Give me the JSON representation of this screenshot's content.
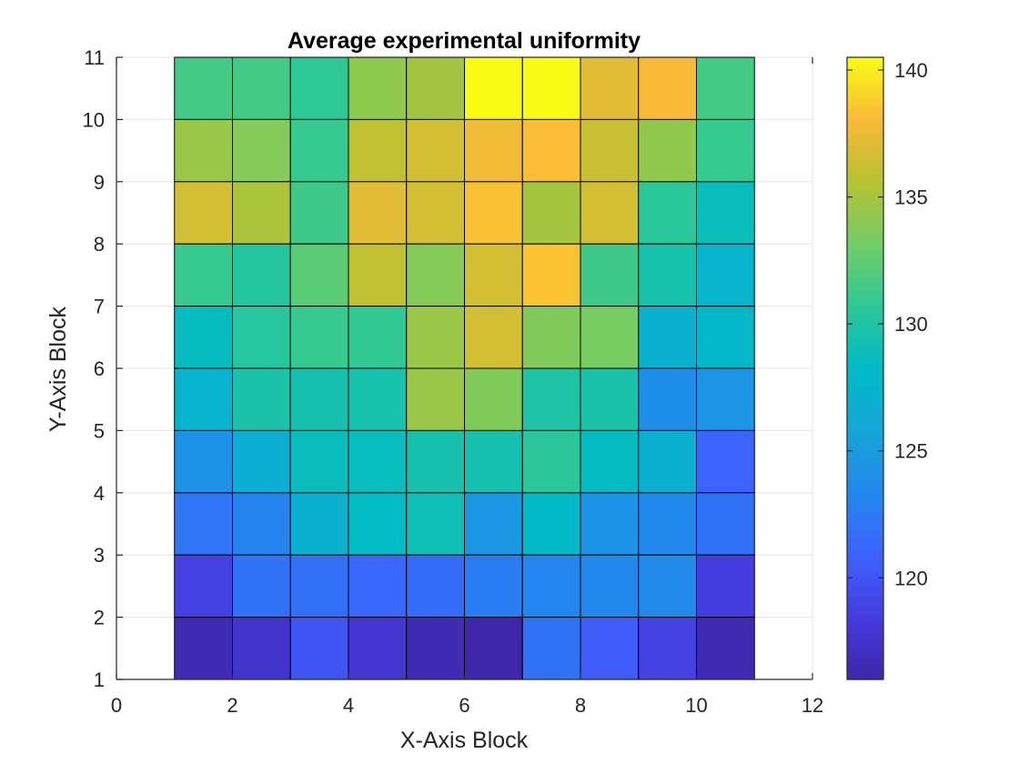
{
  "chart_data": {
    "type": "heatmap",
    "title": "Average experimental uniformity",
    "xlabel": "X-Axis Block",
    "ylabel": "Y-Axis Block",
    "xlim": [
      0,
      12
    ],
    "ylim": [
      1,
      11
    ],
    "xticks": [
      "0",
      "2",
      "4",
      "6",
      "8",
      "10",
      "12"
    ],
    "yticks": [
      "1",
      "2",
      "3",
      "4",
      "5",
      "6",
      "7",
      "8",
      "9",
      "10",
      "11"
    ],
    "grid": true,
    "colormap": "parula",
    "clim": [
      116,
      140.5
    ],
    "colorbar_ticks": [
      "120",
      "125",
      "130",
      "135",
      "140"
    ],
    "x_edges": [
      1,
      2,
      3,
      4,
      5,
      6,
      7,
      8,
      9,
      10,
      11
    ],
    "y_edges": [
      1,
      2,
      3,
      4,
      5,
      6,
      7,
      8,
      9,
      10,
      11
    ],
    "rows_y_top_to_bottom": [
      [
        131.5,
        131.5,
        130.7,
        134.2,
        134.9,
        140.5,
        140.5,
        137.2,
        138.0,
        131.5
      ],
      [
        134.6,
        133.8,
        131.0,
        135.9,
        136.6,
        137.7,
        138.2,
        136.2,
        134.3,
        131.0
      ],
      [
        136.6,
        135.2,
        131.3,
        137.2,
        136.6,
        138.3,
        135.0,
        136.6,
        130.5,
        128.8
      ],
      [
        131.0,
        130.2,
        132.3,
        135.9,
        133.8,
        136.6,
        138.4,
        131.3,
        129.6,
        127.4
      ],
      [
        128.6,
        130.3,
        131.0,
        130.8,
        134.6,
        136.6,
        133.7,
        133.4,
        127.2,
        127.9
      ],
      [
        127.5,
        129.8,
        129.4,
        129.6,
        134.6,
        133.7,
        129.9,
        129.7,
        123.9,
        124.4
      ],
      [
        124.2,
        126.8,
        128.8,
        128.7,
        129.5,
        129.4,
        130.6,
        128.5,
        127.0,
        120.9
      ],
      [
        122.2,
        123.0,
        127.1,
        128.4,
        129.0,
        124.5,
        128.1,
        124.3,
        123.5,
        121.9
      ],
      [
        118.7,
        122.0,
        121.8,
        121.2,
        121.6,
        122.7,
        123.2,
        123.5,
        123.6,
        118.5
      ],
      [
        116.5,
        117.5,
        120.1,
        117.8,
        116.6,
        116.0,
        121.9,
        120.4,
        118.7,
        116.4
      ]
    ]
  }
}
